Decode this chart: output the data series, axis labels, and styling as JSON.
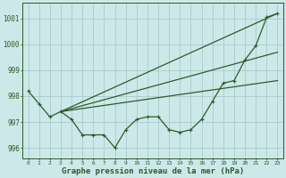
{
  "xlabel": "Graphe pression niveau de la mer (hPa)",
  "background_color": "#cce8e8",
  "grid_color": "#aacccc",
  "line_color": "#2d5a2d",
  "x_ticks": [
    0,
    1,
    2,
    3,
    4,
    5,
    6,
    7,
    8,
    9,
    10,
    11,
    12,
    13,
    14,
    15,
    16,
    17,
    18,
    19,
    20,
    21,
    22,
    23
  ],
  "ylim": [
    995.6,
    1001.6
  ],
  "yticks": [
    996,
    997,
    998,
    999,
    1000,
    1001
  ],
  "jagged_series": [
    998.2,
    997.7,
    997.2,
    997.4,
    997.1,
    996.5,
    996.5,
    996.5,
    996.0,
    996.7,
    997.1,
    997.2,
    997.2,
    996.7,
    996.6,
    996.7,
    997.1,
    997.8,
    998.5,
    998.6,
    999.4,
    999.95,
    1001.05,
    1001.2
  ],
  "straight_lines": [
    {
      "x0": 3,
      "y0": 997.4,
      "x1": 23,
      "y1": 1001.2
    },
    {
      "x0": 3,
      "y0": 997.4,
      "x1": 23,
      "y1": 999.7
    },
    {
      "x0": 3,
      "y0": 997.4,
      "x1": 23,
      "y1": 998.6
    }
  ]
}
